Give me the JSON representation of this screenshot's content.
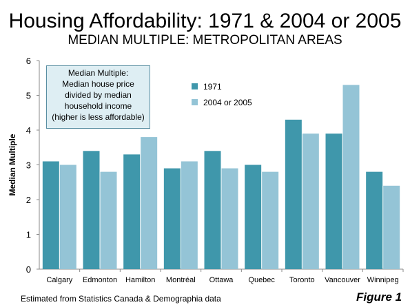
{
  "header": {
    "title": "Housing Affordability: 1971 & 2004 or 2005",
    "subtitle": "MEDIAN MULTIPLE: METROPOLITAN AREAS"
  },
  "note": {
    "lines": [
      "Median Multiple:",
      "Median house price",
      "divided by median",
      "household income",
      "(higher is less affordable)"
    ]
  },
  "footer": {
    "source": "Estimated from Statistics Canada &  Demographia data",
    "figure": "Figure 1"
  },
  "colors": {
    "series_1971": "#3f97ab",
    "series_2004": "#94c4d6",
    "axis": "#888888"
  },
  "chart_data": {
    "type": "bar",
    "categories": [
      "Calgary",
      "Edmonton",
      "Hamilton",
      "Montréal",
      "Ottawa",
      "Quebec",
      "Toronto",
      "Vancouver",
      "Winnipeg"
    ],
    "series": [
      {
        "name": "1971",
        "values": [
          3.1,
          3.4,
          3.3,
          2.9,
          3.4,
          3.0,
          4.3,
          3.9,
          2.8
        ]
      },
      {
        "name": "2004 or 2005",
        "values": [
          3.0,
          2.8,
          3.8,
          3.1,
          2.9,
          2.8,
          3.9,
          5.3,
          2.4
        ]
      }
    ],
    "ylabel": "Median Multiple",
    "xlabel": "",
    "ylim": [
      0,
      6
    ],
    "yticks": [
      0,
      1,
      2,
      3,
      4,
      5,
      6
    ],
    "grid": false,
    "legend": "top-center"
  }
}
